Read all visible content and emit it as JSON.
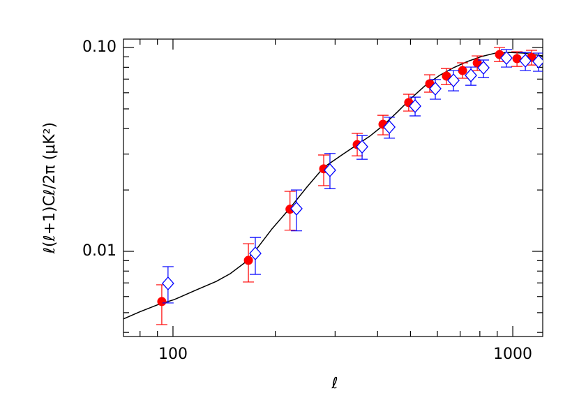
{
  "chart_data": {
    "type": "scatter",
    "x_label": "ℓ",
    "y_label": "ℓ(ℓ+1)Cℓ/2π (μK²)",
    "xscale": "log",
    "yscale": "log",
    "xlim": [
      71.5,
      1225
    ],
    "ylim": [
      0.00382,
      0.11
    ],
    "xticks": [
      100,
      1000
    ],
    "yticks": [
      0.01,
      {
        "value": 0.1,
        "label": "0.10"
      }
    ],
    "series": [
      {
        "style": "line",
        "color": "#000000",
        "x": [
          71.5,
          79.7,
          89.7,
          100.9,
          116.3,
          134.1,
          147.4,
          162.0,
          178.1,
          195.7,
          221,
          248,
          277.7,
          314,
          348.5,
          379.3,
          415,
          458.3,
          503.9,
          553.9,
          608.7,
          669,
          735.5,
          808.4,
          888.6,
          976.6,
          1073,
          1225
        ],
        "values": [
          0.00466,
          0.00504,
          0.00545,
          0.0058,
          0.00643,
          0.00712,
          0.00777,
          0.00875,
          0.0105,
          0.0129,
          0.0163,
          0.0207,
          0.0258,
          0.0297,
          0.0334,
          0.0367,
          0.0414,
          0.0484,
          0.0567,
          0.0653,
          0.073,
          0.0796,
          0.0854,
          0.0903,
          0.0939,
          0.0946,
          0.0939,
          0.091
        ]
      },
      {
        "style": "circle",
        "color": "#ff0000",
        "x": [
          92.7,
          166.7,
          221,
          277.7,
          348.5,
          415,
          494,
          569.6,
          638,
          711.6,
          786,
          914,
          1029,
          1136
        ],
        "values": [
          0.00567,
          0.00903,
          0.0161,
          0.0254,
          0.0334,
          0.042,
          0.0537,
          0.0664,
          0.0724,
          0.0771,
          0.0841,
          0.0924,
          0.0882,
          0.0896
        ],
        "lows": [
          0.00437,
          0.00707,
          0.0127,
          0.021,
          0.0294,
          0.0373,
          0.0488,
          0.0604,
          0.0658,
          0.0707,
          0.0771,
          0.0854,
          0.0808,
          0.0821
        ],
        "highs": [
          0.00685,
          0.0109,
          0.0197,
          0.0297,
          0.0379,
          0.0465,
          0.059,
          0.0735,
          0.0789,
          0.0841,
          0.091,
          0.1,
          0.0954,
          0.0969
        ]
      },
      {
        "style": "diamond",
        "color": "#0000ff",
        "x": [
          96.7,
          174.7,
          230.9,
          289.7,
          360.2,
          433.3,
          515.9,
          591.6,
          669,
          753,
          820,
          958,
          1089,
          1191
        ],
        "values": [
          0.00696,
          0.00977,
          0.0162,
          0.025,
          0.0326,
          0.0407,
          0.0516,
          0.0628,
          0.069,
          0.073,
          0.0796,
          0.0889,
          0.0861,
          0.0854
        ],
        "lows": [
          0.00558,
          0.00771,
          0.0126,
          0.0203,
          0.0283,
          0.0359,
          0.0462,
          0.0558,
          0.0613,
          0.0653,
          0.0712,
          0.0802,
          0.0771,
          0.0765
        ],
        "highs": [
          0.00841,
          0.0117,
          0.02,
          0.0302,
          0.037,
          0.0455,
          0.0571,
          0.0696,
          0.0771,
          0.0802,
          0.0868,
          0.0977,
          0.0946,
          0.0939
        ]
      }
    ]
  }
}
